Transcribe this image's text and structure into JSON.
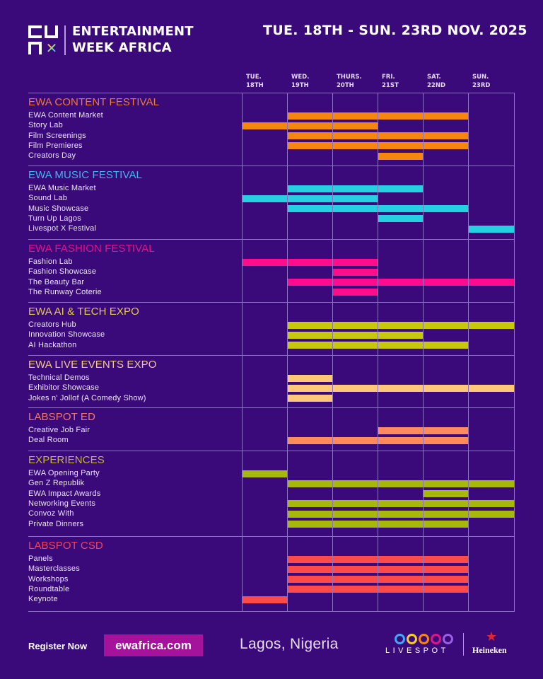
{
  "header": {
    "logo_letters": [
      "E",
      "W",
      "A",
      "X"
    ],
    "brand_line1": "ENTERTAINMENT",
    "brand_line2": "WEEK AFRICA",
    "dates": "TUE. 18TH - SUN. 23RD NOV. 2025"
  },
  "days": [
    {
      "line1": "TUE.",
      "line2": "18TH"
    },
    {
      "line1": "WED.",
      "line2": "19TH"
    },
    {
      "line1": "THURS.",
      "line2": "20TH"
    },
    {
      "line1": "FRI.",
      "line2": "21ST"
    },
    {
      "line1": "SAT.",
      "line2": "22ND"
    },
    {
      "line1": "SUN.",
      "line2": "23RD"
    }
  ],
  "chart_data": {
    "type": "gantt",
    "title": "Entertainment Week Africa schedule, Tue. 18th - Sun. 23rd Nov. 2025",
    "x_categories": [
      "TUE. 18TH",
      "WED. 19TH",
      "THURS. 20TH",
      "FRI. 21ST",
      "SAT. 22ND",
      "SUN. 23RD"
    ],
    "grid": true,
    "sections": [
      {
        "name": "EWA CONTENT FESTIVAL",
        "color": "#f7860f",
        "events": [
          {
            "label": "EWA Content Market",
            "start": 1,
            "end": 5
          },
          {
            "label": "Story Lab",
            "start": 0,
            "end": 3
          },
          {
            "label": "Film Screenings",
            "start": 1,
            "end": 5
          },
          {
            "label": "Film Premieres",
            "start": 1,
            "end": 5
          },
          {
            "label": "Creators Day",
            "start": 3,
            "end": 4
          }
        ]
      },
      {
        "name": "EWA MUSIC FESTIVAL",
        "color": "#25d0e0",
        "events": [
          {
            "label": "EWA Music Market",
            "start": 1,
            "end": 4
          },
          {
            "label": "Sound Lab",
            "start": 0,
            "end": 3
          },
          {
            "label": "Music Showcase",
            "start": 1,
            "end": 5
          },
          {
            "label": "Turn Up Lagos",
            "start": 3,
            "end": 4
          },
          {
            "label": "Livespot X Festival",
            "start": 5,
            "end": 6
          }
        ]
      },
      {
        "name": "EWA FASHION FESTIVAL",
        "color": "#ff0d8c",
        "events": [
          {
            "label": "Fashion Lab",
            "start": 0,
            "end": 3
          },
          {
            "label": "Fashion Showcase",
            "start": 2,
            "end": 3
          },
          {
            "label": "The Beauty Bar",
            "start": 1,
            "end": 6
          },
          {
            "label": "The Runway Coterie",
            "start": 2,
            "end": 3
          }
        ]
      },
      {
        "name": "EWA AI & TECH EXPO",
        "color": "#c8c80a",
        "events": [
          {
            "label": "Creators Hub",
            "start": 1,
            "end": 6
          },
          {
            "label": "Innovation Showcase",
            "start": 1,
            "end": 4
          },
          {
            "label": "AI Hackathon",
            "start": 1,
            "end": 5
          }
        ]
      },
      {
        "name": "EWA LIVE EVENTS EXPO",
        "color": "#ffc77a",
        "events": [
          {
            "label": "Technical Demos",
            "start": 1,
            "end": 2
          },
          {
            "label": "Exhibitor Showcase",
            "start": 1,
            "end": 6
          },
          {
            "label": "Jokes n' Jollof (A Comedy Show)",
            "start": 1,
            "end": 2
          }
        ]
      },
      {
        "name": "LABSPOT ED",
        "color": "#ff8a5c",
        "events": [
          {
            "label": "Creative Job Fair",
            "start": 3,
            "end": 5
          },
          {
            "label": "Deal Room",
            "start": 1,
            "end": 5
          }
        ]
      },
      {
        "name": "EXPERIENCES",
        "color": "#a6b80a",
        "events": [
          {
            "label": "EWA Opening Party",
            "start": 0,
            "end": 1
          },
          {
            "label": "Gen Z Republik",
            "start": 1,
            "end": 6
          },
          {
            "label": "EWA Impact Awards",
            "start": 4,
            "end": 5
          },
          {
            "label": "Networking Events",
            "start": 1,
            "end": 6
          },
          {
            "label": "Convoz With",
            "start": 1,
            "end": 6
          },
          {
            "label": "Private Dinners",
            "start": 1,
            "end": 5
          }
        ]
      },
      {
        "name": "LABSPOT CSD",
        "color": "#ff4a4a",
        "events": [
          {
            "label": "Panels",
            "start": 1,
            "end": 5
          },
          {
            "label": "Masterclasses",
            "start": 1,
            "end": 5
          },
          {
            "label": "Workshops",
            "start": 1,
            "end": 5
          },
          {
            "label": "Roundtable",
            "start": 1,
            "end": 5
          },
          {
            "label": "Keynote",
            "start": 0,
            "end": 1
          }
        ]
      }
    ]
  },
  "section_title_colors": [
    "#f07a2a",
    "#3fb7ea",
    "#e0148a",
    "#e3c94a",
    "#f3c98c",
    "#f07a6a",
    "#c3b43a",
    "#f0435a"
  ],
  "footer": {
    "register_label": "Register Now",
    "site": "ewafrica.com",
    "location": "Lagos, Nigeria",
    "livespot": "LIVESPOT",
    "ring_colors": [
      "#3fa9f5",
      "#f5d020",
      "#f7860f",
      "#e0148a",
      "#9b5de5"
    ],
    "sponsor": "Heineken"
  }
}
